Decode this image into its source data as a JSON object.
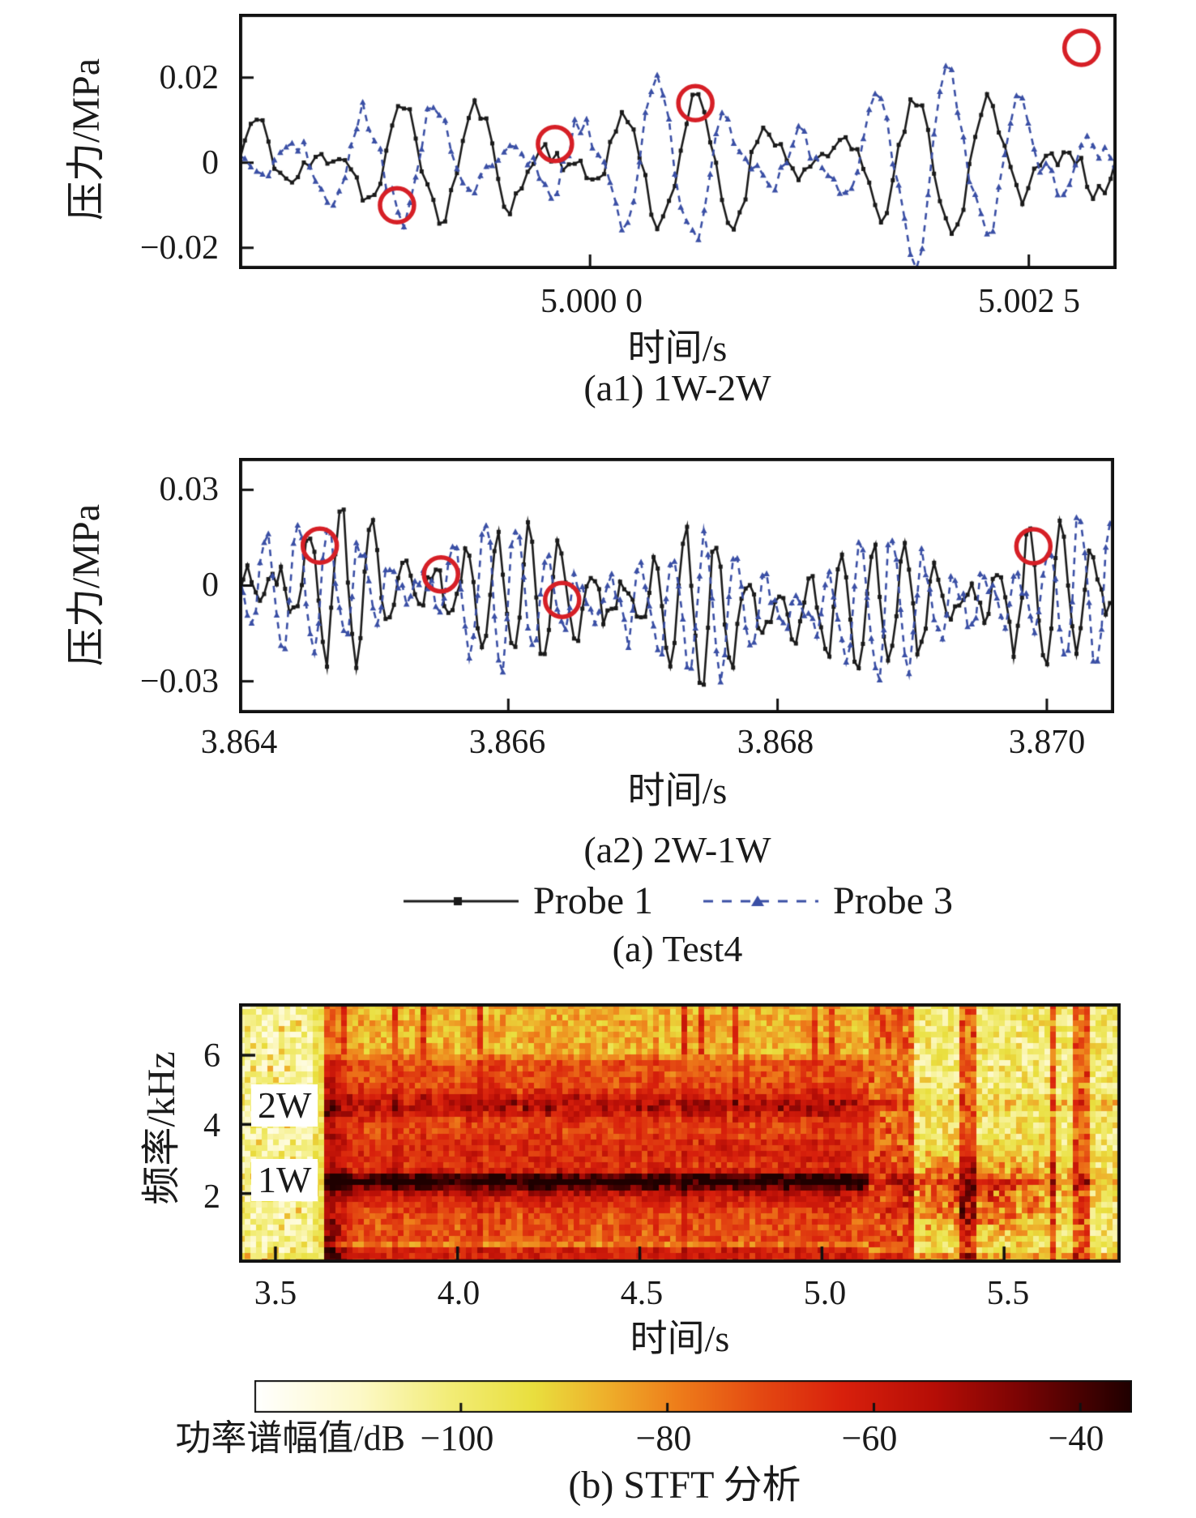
{
  "colors": {
    "probe1": "#1a1a1a",
    "probe3": "#3a4fa5",
    "highlight_circle": "#d61f26",
    "frame": "#111111",
    "text": "#1a1a1a"
  },
  "captions": {
    "group_a": "(a) Test4"
  },
  "legend": {
    "items": [
      {
        "label": "Probe 1",
        "line": "solid",
        "marker": "square",
        "color": "#1a1a1a"
      },
      {
        "label": "Probe 3",
        "line": "dashed",
        "marker": "triangle",
        "color": "#3a4fa5"
      }
    ]
  },
  "chart_data": [
    {
      "id": "a1",
      "type": "line",
      "title": "(a1) 1W-2W",
      "xlabel": "时间/s",
      "ylabel": "压力/MPa",
      "xlim": [
        4.998,
        5.003
      ],
      "ylim": [
        -0.025,
        0.035
      ],
      "xticks": [
        5.0,
        5.0025
      ],
      "xtick_labels": [
        "5.000 0",
        "5.002 5"
      ],
      "yticks": [
        0.02,
        0,
        -0.02
      ],
      "ytick_labels": [
        "0.02",
        "0",
        "−0.02"
      ],
      "grid": false,
      "seed": 11,
      "n_points": 150,
      "series": [
        {
          "name": "Probe 1",
          "color": "#1a1a1a",
          "line": "solid",
          "marker": "square",
          "freq_hz": 2400,
          "amp": 0.011,
          "amp_growth": 1.3,
          "phase": 0.0,
          "noise": 0.0022,
          "harmonic2": 0.0,
          "env_cycles": 3.5
        },
        {
          "name": "Probe 3",
          "color": "#3a4fa5",
          "line": "dashed",
          "marker": "triangle",
          "freq_hz": 2400,
          "amp": 0.009,
          "amp_growth": 2.2,
          "phase": 3.4,
          "noise": 0.0022,
          "harmonic2": 0.18,
          "env_cycles": 3.2
        }
      ],
      "drift": {
        "depth": 0,
        "center": 0.5,
        "width": 0.2
      },
      "highlight_circles": [
        [
          4.9989,
          -0.01
        ],
        [
          4.9998,
          0.0044
        ],
        [
          5.0006,
          0.014
        ],
        [
          5.0028,
          0.027
        ]
      ]
    },
    {
      "id": "a2",
      "type": "line",
      "title": "(a2) 2W-1W",
      "xlabel": "时间/s",
      "ylabel": "压力/MPa",
      "xlim": [
        3.864,
        3.8705
      ],
      "ylim": [
        -0.04,
        0.04
      ],
      "xticks": [
        3.864,
        3.866,
        3.868,
        3.87
      ],
      "xtick_labels": [
        "3.864",
        "3.866",
        "3.868",
        "3.870"
      ],
      "yticks": [
        0.03,
        0,
        -0.03
      ],
      "ytick_labels": [
        "0.03",
        "0",
        "−0.03"
      ],
      "grid": false,
      "seed": 23,
      "n_points": 210,
      "series": [
        {
          "name": "Probe 1",
          "color": "#1a1a1a",
          "line": "solid",
          "marker": "square",
          "freq_hz": 4300,
          "amp": 0.019,
          "amp_growth": 0.9,
          "phase": 0.0,
          "noise": 0.003,
          "harmonic2": 0.0,
          "env_cycles": 5
        },
        {
          "name": "Probe 3",
          "color": "#3a4fa5",
          "line": "dashed",
          "marker": "triangle",
          "freq_hz": 4300,
          "amp": 0.017,
          "amp_growth": 1.05,
          "phase": 2.4,
          "noise": 0.003,
          "harmonic2": 0.12,
          "env_cycles": 4.5
        }
      ],
      "drift": {
        "depth": -0.008,
        "center": 0.62,
        "width": 0.2
      },
      "highlight_circles": [
        [
          3.8646,
          0.0125
        ],
        [
          3.8655,
          0.0035
        ],
        [
          3.8664,
          -0.0045
        ],
        [
          3.8699,
          0.0123
        ]
      ]
    },
    {
      "id": "b",
      "type": "heatmap",
      "title": "(b) STFT 分析",
      "xlabel": "时间/s",
      "ylabel": "频率/kHz",
      "xlim": [
        3.4,
        5.82
      ],
      "ylim": [
        0,
        7.5
      ],
      "xticks": [
        3.5,
        4.0,
        4.5,
        5.0,
        5.5
      ],
      "xtick_labels": [
        "3.5",
        "4.0",
        "4.5",
        "5.0",
        "5.5"
      ],
      "yticks": [
        6,
        4,
        2
      ],
      "ytick_labels": [
        "6",
        "4",
        "2"
      ],
      "seed": 7,
      "active_interval_s": [
        3.63,
        5.115
      ],
      "bands": [
        {
          "name": "1W",
          "f_khz": 2.4,
          "peak_db": -38
        },
        {
          "name": "2W",
          "f_khz": 4.55,
          "peak_db": -50
        }
      ],
      "inner_labels": [
        {
          "text": "2W",
          "f_khz": 4.55
        },
        {
          "text": "1W",
          "f_khz": 2.35
        }
      ],
      "background_db": {
        "quiet_left": -106,
        "active": -78,
        "after": -99
      },
      "colorbar": {
        "label": "功率谱幅值/dB",
        "range_db": [
          -120,
          -35
        ],
        "ticks": [
          -100,
          -80,
          -60,
          -40
        ],
        "tick_labels": [
          "−100",
          "−80",
          "−60",
          "−40"
        ],
        "colormap": [
          [
            -120,
            "#ffffff"
          ],
          [
            -110,
            "#fdf9c9"
          ],
          [
            -101,
            "#f2ec76"
          ],
          [
            -93,
            "#e9df3e"
          ],
          [
            -86,
            "#eeb02b"
          ],
          [
            -79,
            "#ee7d1a"
          ],
          [
            -71,
            "#e44912"
          ],
          [
            -63,
            "#d8200c"
          ],
          [
            -54,
            "#b50d06"
          ],
          [
            -46,
            "#7c0404"
          ],
          [
            -40,
            "#490101"
          ],
          [
            -35,
            "#1f0000"
          ]
        ]
      }
    }
  ]
}
